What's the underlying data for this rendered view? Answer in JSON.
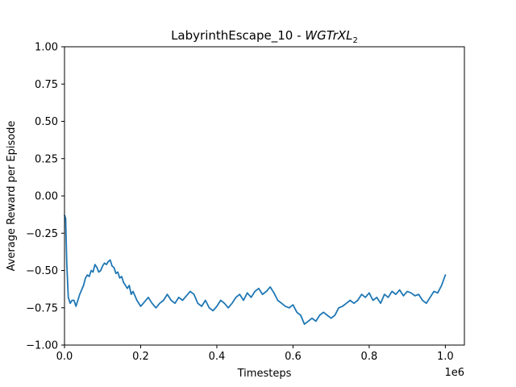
{
  "chart_data": {
    "type": "line",
    "title": {
      "prefix": "LabyrinthEscape_10 - ",
      "main": "WGTrXL",
      "subscript": "2"
    },
    "xlabel": "Timesteps",
    "ylabel": "Average Reward per Episode",
    "x_offset_label": "1e6",
    "xlim": [
      0,
      1.05
    ],
    "ylim": [
      -1.0,
      1.0
    ],
    "x_ticks": [
      {
        "value": 0.0,
        "label": "0.0"
      },
      {
        "value": 0.2,
        "label": "0.2"
      },
      {
        "value": 0.4,
        "label": "0.4"
      },
      {
        "value": 0.6,
        "label": "0.6"
      },
      {
        "value": 0.8,
        "label": "0.8"
      },
      {
        "value": 1.0,
        "label": "1.0"
      }
    ],
    "y_ticks": [
      {
        "value": 1.0,
        "label": "1.00"
      },
      {
        "value": 0.75,
        "label": "0.75"
      },
      {
        "value": 0.5,
        "label": "0.50"
      },
      {
        "value": 0.25,
        "label": "0.25"
      },
      {
        "value": 0.0,
        "label": "0.00"
      },
      {
        "value": -0.25,
        "label": "−0.25"
      },
      {
        "value": -0.5,
        "label": "−0.50"
      },
      {
        "value": -0.75,
        "label": "−0.75"
      },
      {
        "value": -1.0,
        "label": "−1.00"
      }
    ],
    "grid": false,
    "series": [
      {
        "color": "#1f77b4",
        "x": [
          0.0,
          0.003,
          0.006,
          0.01,
          0.015,
          0.02,
          0.025,
          0.03,
          0.04,
          0.05,
          0.055,
          0.06,
          0.065,
          0.07,
          0.075,
          0.08,
          0.085,
          0.09,
          0.095,
          0.1,
          0.105,
          0.11,
          0.115,
          0.12,
          0.125,
          0.13,
          0.135,
          0.14,
          0.145,
          0.15,
          0.155,
          0.16,
          0.165,
          0.17,
          0.175,
          0.18,
          0.19,
          0.2,
          0.21,
          0.22,
          0.23,
          0.24,
          0.25,
          0.26,
          0.27,
          0.28,
          0.29,
          0.3,
          0.31,
          0.32,
          0.33,
          0.34,
          0.35,
          0.36,
          0.37,
          0.38,
          0.39,
          0.4,
          0.41,
          0.42,
          0.43,
          0.44,
          0.45,
          0.46,
          0.47,
          0.48,
          0.49,
          0.5,
          0.51,
          0.52,
          0.53,
          0.54,
          0.55,
          0.56,
          0.57,
          0.58,
          0.59,
          0.6,
          0.61,
          0.62,
          0.63,
          0.64,
          0.65,
          0.66,
          0.67,
          0.68,
          0.69,
          0.7,
          0.71,
          0.72,
          0.73,
          0.74,
          0.75,
          0.76,
          0.77,
          0.78,
          0.79,
          0.8,
          0.81,
          0.82,
          0.83,
          0.84,
          0.85,
          0.86,
          0.87,
          0.88,
          0.89,
          0.9,
          0.91,
          0.92,
          0.93,
          0.94,
          0.95,
          0.96,
          0.97,
          0.98,
          0.99,
          1.0
        ],
        "y": [
          -0.13,
          -0.15,
          -0.45,
          -0.68,
          -0.72,
          -0.7,
          -0.7,
          -0.74,
          -0.66,
          -0.6,
          -0.55,
          -0.53,
          -0.54,
          -0.5,
          -0.51,
          -0.46,
          -0.48,
          -0.51,
          -0.5,
          -0.47,
          -0.45,
          -0.46,
          -0.44,
          -0.43,
          -0.47,
          -0.48,
          -0.52,
          -0.51,
          -0.55,
          -0.54,
          -0.58,
          -0.6,
          -0.62,
          -0.6,
          -0.66,
          -0.64,
          -0.7,
          -0.74,
          -0.71,
          -0.68,
          -0.72,
          -0.75,
          -0.72,
          -0.7,
          -0.66,
          -0.7,
          -0.72,
          -0.68,
          -0.7,
          -0.67,
          -0.64,
          -0.66,
          -0.72,
          -0.74,
          -0.7,
          -0.75,
          -0.77,
          -0.74,
          -0.7,
          -0.72,
          -0.75,
          -0.72,
          -0.68,
          -0.66,
          -0.7,
          -0.65,
          -0.68,
          -0.64,
          -0.62,
          -0.66,
          -0.64,
          -0.61,
          -0.65,
          -0.7,
          -0.72,
          -0.74,
          -0.75,
          -0.73,
          -0.78,
          -0.8,
          -0.86,
          -0.84,
          -0.82,
          -0.84,
          -0.8,
          -0.78,
          -0.8,
          -0.82,
          -0.8,
          -0.75,
          -0.74,
          -0.72,
          -0.7,
          -0.72,
          -0.7,
          -0.66,
          -0.68,
          -0.65,
          -0.7,
          -0.68,
          -0.72,
          -0.66,
          -0.68,
          -0.64,
          -0.66,
          -0.63,
          -0.67,
          -0.64,
          -0.65,
          -0.67,
          -0.66,
          -0.7,
          -0.72,
          -0.68,
          -0.64,
          -0.65,
          -0.6,
          -0.53
        ]
      }
    ]
  }
}
